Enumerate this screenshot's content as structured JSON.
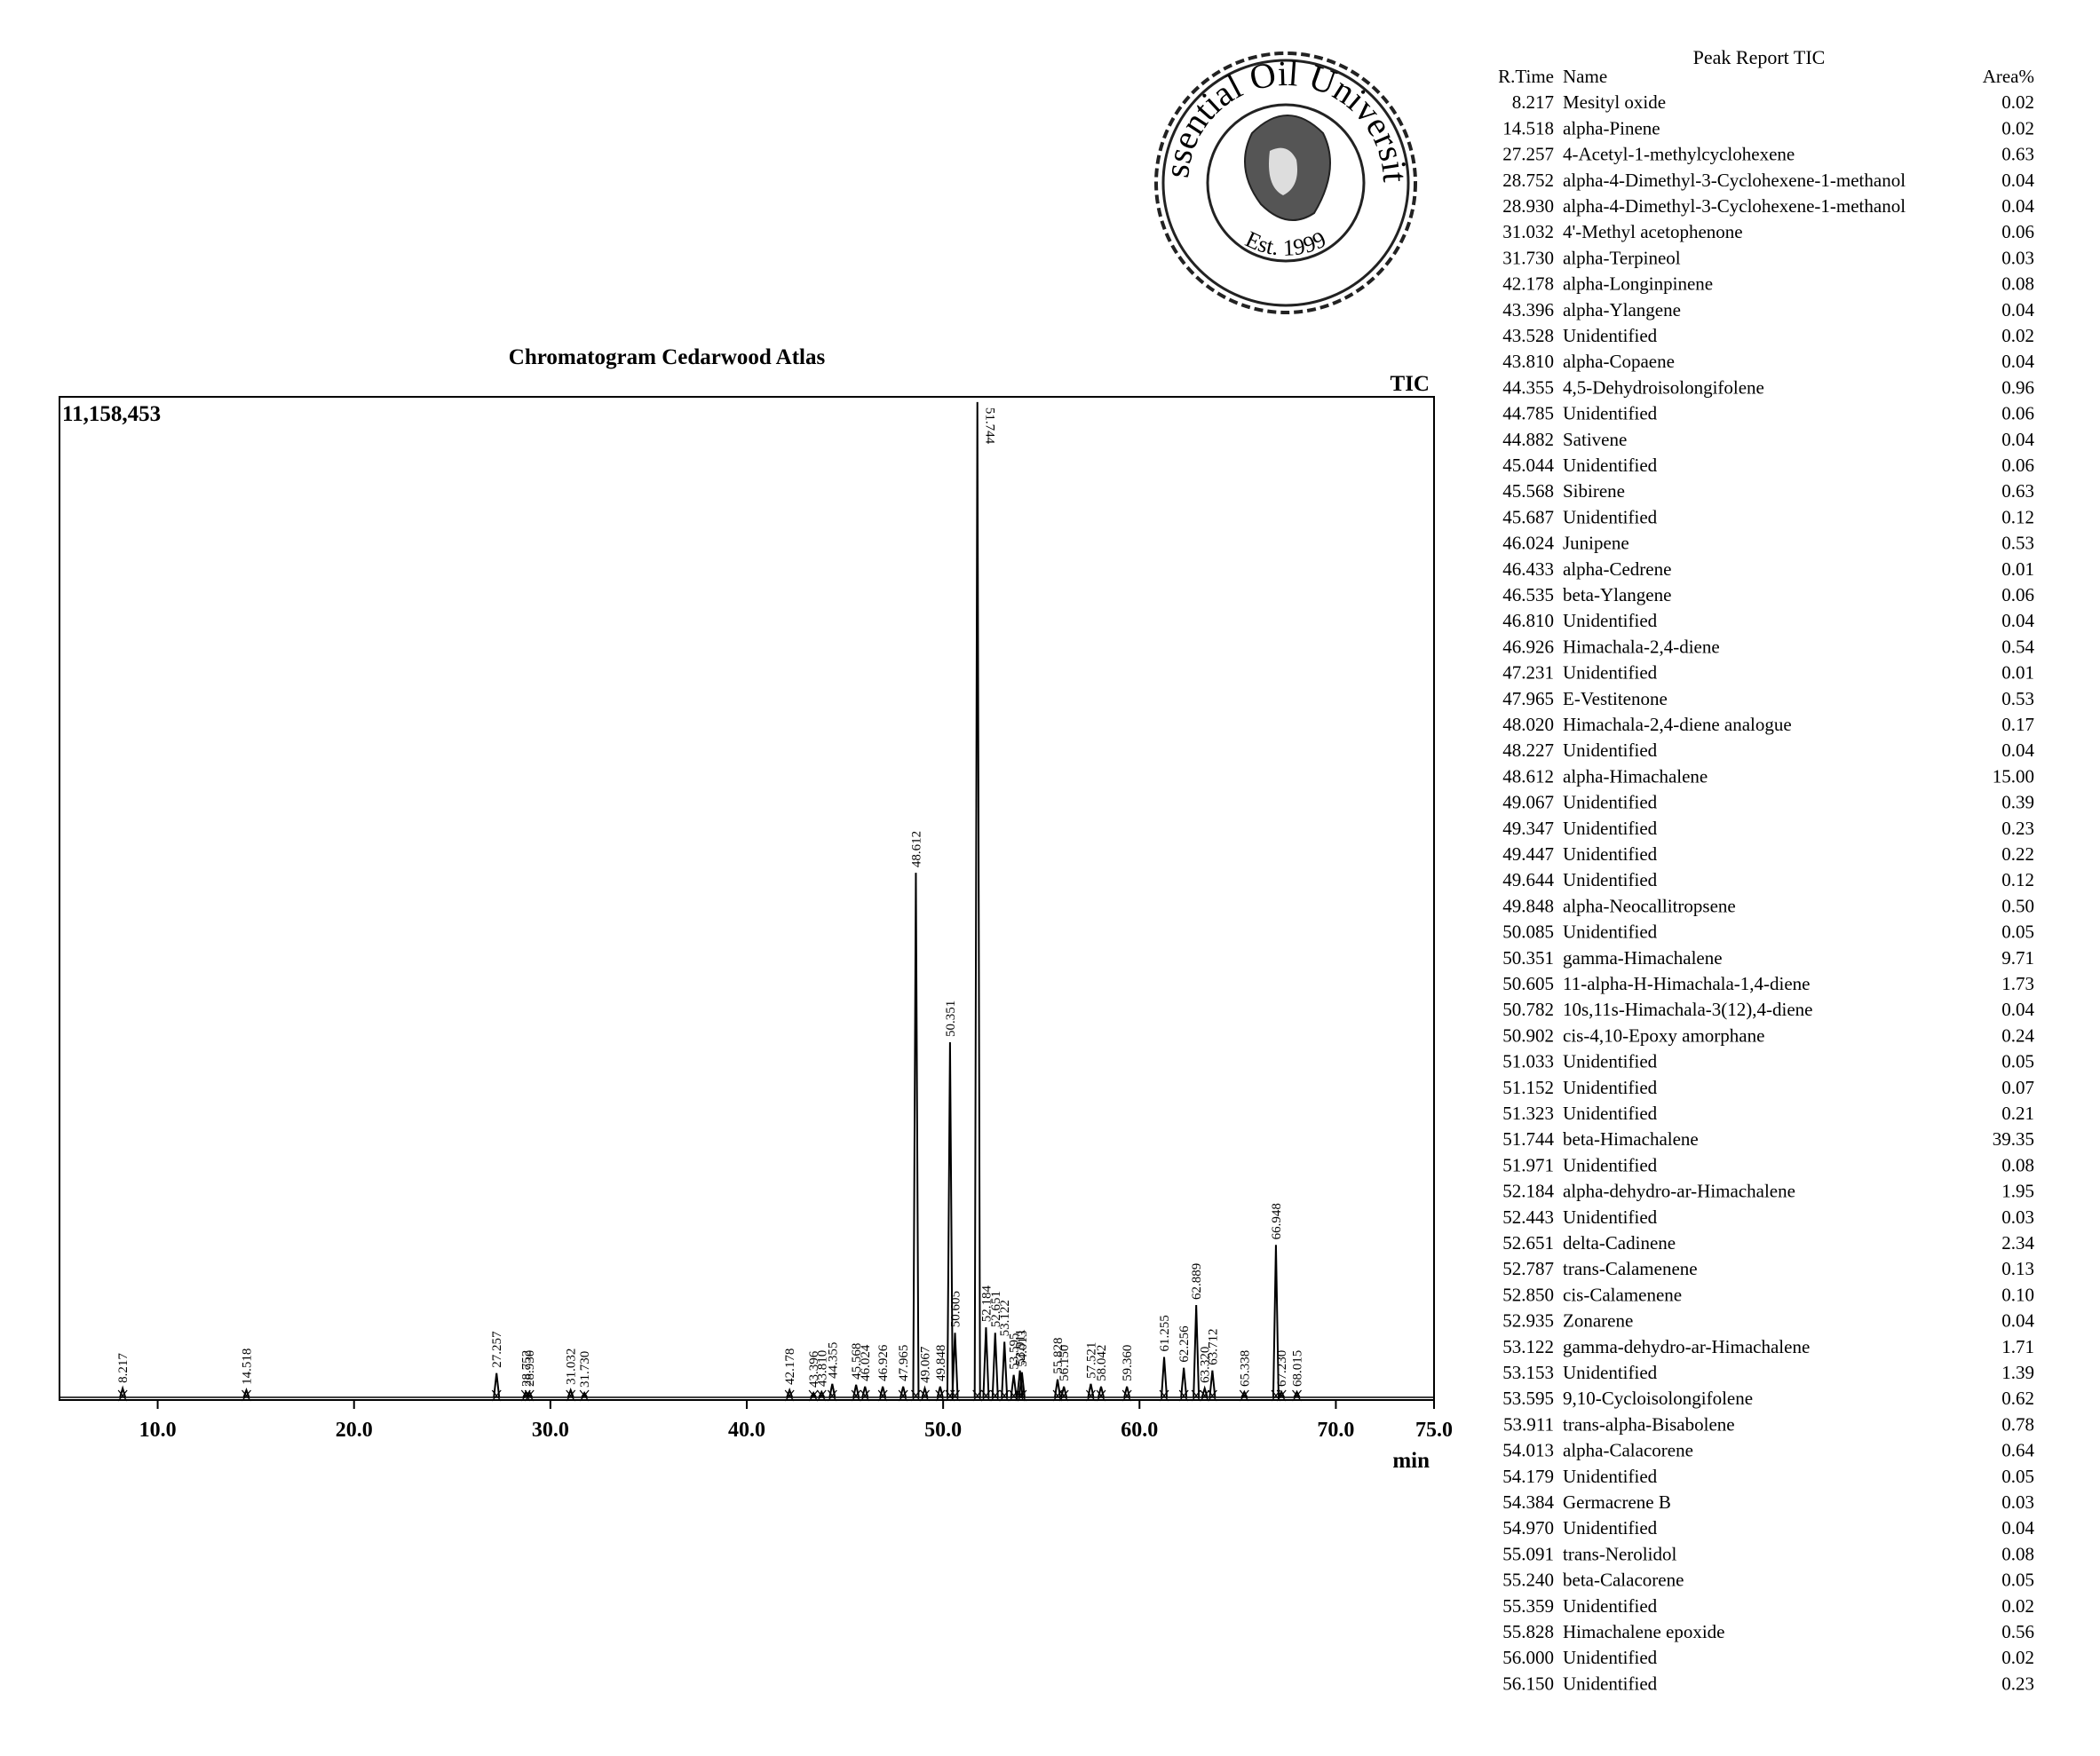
{
  "chart_data": {
    "type": "chromatogram",
    "title": "Chromatogram Cedarwood Atlas",
    "trace_label": "TIC",
    "x_label": "min",
    "xlim": [
      5,
      75
    ],
    "xticks": [
      {
        "value": 10,
        "label": "10.0"
      },
      {
        "value": 20,
        "label": "20.0"
      },
      {
        "value": 30,
        "label": "30.0"
      },
      {
        "value": 40,
        "label": "40.0"
      },
      {
        "value": 50,
        "label": "50.0"
      },
      {
        "value": 60,
        "label": "60.0"
      },
      {
        "value": 70,
        "label": "70.0"
      },
      {
        "value": 75,
        "label": "75.0"
      }
    ],
    "ylim": [
      0,
      11158453
    ],
    "yticks": [
      {
        "value": 11158453,
        "label": "11,158,453"
      }
    ],
    "color": "#000000",
    "x": [
      8.217,
      14.518,
      27.257,
      28.752,
      28.93,
      31.032,
      31.73,
      42.178,
      43.396,
      43.81,
      44.355,
      45.568,
      46.024,
      46.926,
      47.965,
      48.612,
      49.067,
      49.848,
      50.351,
      50.605,
      51.744,
      52.184,
      52.651,
      53.122,
      53.595,
      53.911,
      54.013,
      55.828,
      56.15,
      57.521,
      58.042,
      59.36,
      61.255,
      62.256,
      62.889,
      63.32,
      63.712,
      65.338,
      66.948,
      67.23,
      68.015
    ],
    "peak_labels": [
      "8.217",
      "14.518",
      "27.257",
      "28.752",
      "28.930",
      "31.032",
      "31.730",
      "42.178",
      "43.396",
      "43.810",
      "44.355",
      "45.568",
      "46.024",
      "46.926",
      "47.965",
      "48.612",
      "49.067",
      "49.848",
      "50.351",
      "50.605",
      "51.744",
      "52.184",
      "52.651",
      "53.122",
      "53.595",
      "53.911",
      "54.013",
      "55.828",
      "56.150",
      "57.521",
      "58.042",
      "59.360",
      "61.255",
      "62.256",
      "62.889",
      "63.320",
      "63.712",
      "65.338",
      "66.948",
      "67.230",
      "68.015"
    ],
    "values": [
      100000,
      80000,
      270000,
      60000,
      60000,
      80000,
      50000,
      80000,
      50000,
      60000,
      150000,
      140000,
      120000,
      120000,
      120000,
      5850000,
      100000,
      120000,
      3960000,
      720000,
      11100000,
      780000,
      720000,
      620000,
      250000,
      300000,
      280000,
      200000,
      120000,
      150000,
      120000,
      120000,
      450000,
      330000,
      1030000,
      100000,
      300000,
      60000,
      1700000,
      60000,
      60000
    ]
  },
  "logo": {
    "name": "Essential Oil University",
    "est": "Est. 1999"
  },
  "peak_report": {
    "title": "Peak Report TIC",
    "header": [
      "R.Time",
      "Name",
      "Area%"
    ],
    "rows": [
      [
        "8.217",
        "Mesityl oxide",
        "0.02"
      ],
      [
        "14.518",
        "alpha-Pinene",
        "0.02"
      ],
      [
        "27.257",
        "4-Acetyl-1-methylcyclohexene",
        "0.63"
      ],
      [
        "28.752",
        "alpha-4-Dimethyl-3-Cyclohexene-1-methanol",
        "0.04"
      ],
      [
        "28.930",
        "alpha-4-Dimethyl-3-Cyclohexene-1-methanol",
        "0.04"
      ],
      [
        "31.032",
        "4'-Methyl acetophenone",
        "0.06"
      ],
      [
        "31.730",
        "alpha-Terpineol",
        "0.03"
      ],
      [
        "42.178",
        "alpha-Longinpinene",
        "0.08"
      ],
      [
        "43.396",
        "alpha-Ylangene",
        "0.04"
      ],
      [
        "43.528",
        "Unidentified",
        "0.02"
      ],
      [
        "43.810",
        "alpha-Copaene",
        "0.04"
      ],
      [
        "44.355",
        "4,5-Dehydroisolongifolene",
        "0.96"
      ],
      [
        "44.785",
        "Unidentified",
        "0.06"
      ],
      [
        "44.882",
        "Sativene",
        "0.04"
      ],
      [
        "45.044",
        "Unidentified",
        "0.06"
      ],
      [
        "45.568",
        "Sibirene",
        "0.63"
      ],
      [
        "45.687",
        "Unidentified",
        "0.12"
      ],
      [
        "46.024",
        "Junipene",
        "0.53"
      ],
      [
        "46.433",
        "alpha-Cedrene",
        "0.01"
      ],
      [
        "46.535",
        "beta-Ylangene",
        "0.06"
      ],
      [
        "46.810",
        "Unidentified",
        "0.04"
      ],
      [
        "46.926",
        "Himachala-2,4-diene",
        "0.54"
      ],
      [
        "47.231",
        "Unidentified",
        "0.01"
      ],
      [
        "47.965",
        "E-Vestitenone",
        "0.53"
      ],
      [
        "48.020",
        "Himachala-2,4-diene analogue",
        "0.17"
      ],
      [
        "48.227",
        "Unidentified",
        "0.04"
      ],
      [
        "48.612",
        "alpha-Himachalene",
        "15.00"
      ],
      [
        "49.067",
        "Unidentified",
        "0.39"
      ],
      [
        "49.347",
        "Unidentified",
        "0.23"
      ],
      [
        "49.447",
        "Unidentified",
        "0.22"
      ],
      [
        "49.644",
        "Unidentified",
        "0.12"
      ],
      [
        "49.848",
        "alpha-Neocallitropsene",
        "0.50"
      ],
      [
        "50.085",
        "Unidentified",
        "0.05"
      ],
      [
        "50.351",
        "gamma-Himachalene",
        "9.71"
      ],
      [
        "50.605",
        "11-alpha-H-Himachala-1,4-diene",
        "1.73"
      ],
      [
        "50.782",
        "10s,11s-Himachala-3(12),4-diene",
        "0.04"
      ],
      [
        "50.902",
        "cis-4,10-Epoxy amorphane",
        "0.24"
      ],
      [
        "51.033",
        "Unidentified",
        "0.05"
      ],
      [
        "51.152",
        "Unidentified",
        "0.07"
      ],
      [
        "51.323",
        "Unidentified",
        "0.21"
      ],
      [
        "51.744",
        "beta-Himachalene",
        "39.35"
      ],
      [
        "51.971",
        "Unidentified",
        "0.08"
      ],
      [
        "52.184",
        "alpha-dehydro-ar-Himachalene",
        "1.95"
      ],
      [
        "52.443",
        "Unidentified",
        "0.03"
      ],
      [
        "52.651",
        "delta-Cadinene",
        "2.34"
      ],
      [
        "52.787",
        "trans-Calamenene",
        "0.13"
      ],
      [
        "52.850",
        "cis-Calamenene",
        "0.10"
      ],
      [
        "52.935",
        "Zonarene",
        "0.04"
      ],
      [
        "53.122",
        "gamma-dehydro-ar-Himachalene",
        "1.71"
      ],
      [
        "53.153",
        "Unidentified",
        "1.39"
      ],
      [
        "53.595",
        "9,10-Cycloisolongifolene",
        "0.62"
      ],
      [
        "53.911",
        "trans-alpha-Bisabolene",
        "0.78"
      ],
      [
        "54.013",
        "alpha-Calacorene",
        "0.64"
      ],
      [
        "54.179",
        "Unidentified",
        "0.05"
      ],
      [
        "54.384",
        "Germacrene B",
        "0.03"
      ],
      [
        "54.970",
        "Unidentified",
        "0.04"
      ],
      [
        "55.091",
        "trans-Nerolidol",
        "0.08"
      ],
      [
        "55.240",
        "beta-Calacorene",
        "0.05"
      ],
      [
        "55.359",
        "Unidentified",
        "0.02"
      ],
      [
        "55.828",
        "Himachalene epoxide",
        "0.56"
      ],
      [
        "56.000",
        "Unidentified",
        "0.02"
      ],
      [
        "56.150",
        "Unidentified",
        "0.23"
      ]
    ]
  }
}
